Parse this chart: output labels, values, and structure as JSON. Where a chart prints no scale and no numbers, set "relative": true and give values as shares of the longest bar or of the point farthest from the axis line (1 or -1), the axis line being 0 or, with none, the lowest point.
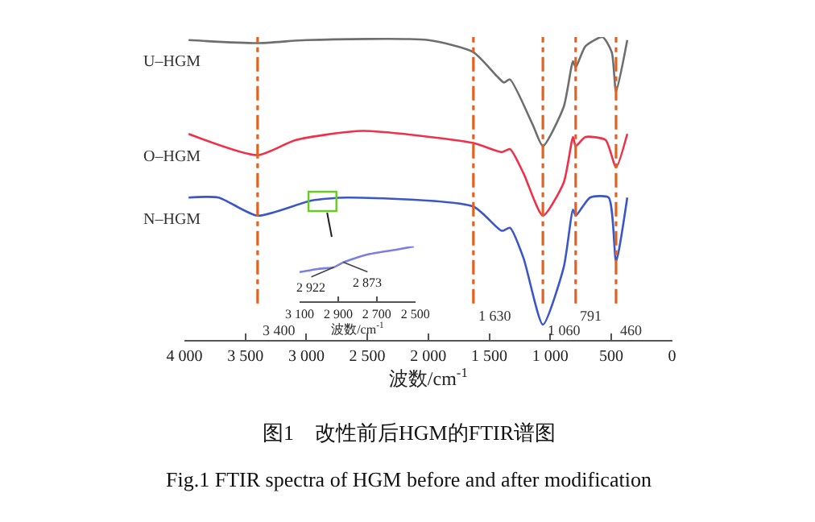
{
  "chart_data": [
    {
      "type": "line",
      "title": "图1　改性前后HGM的FTIR谱图",
      "subtitle": "Fig.1 FTIR spectra of HGM before and after modification",
      "xlabel": "波数/cm$^{-1}$",
      "relative": true,
      "marker": "none",
      "tick_labels": "x",
      "xlim": [
        4000,
        0
      ],
      "xticks": [
        {
          "value": 4000,
          "label": "4 000"
        },
        {
          "value": 3500,
          "label": "3 500"
        },
        {
          "value": 3000,
          "label": "3 000"
        },
        {
          "value": 2500,
          "label": "2 500"
        },
        {
          "value": 2000,
          "label": "2 000"
        },
        {
          "value": 1500,
          "label": "1 500"
        },
        {
          "value": 1000,
          "label": "1 000"
        },
        500,
        0
      ],
      "series": [
        {
          "name": "U–HGM",
          "color": "#6e6e6e",
          "x": [
            3966,
            3400,
            3000,
            2000,
            1630,
            1435,
            1380,
            1330,
            1143,
            1060,
            889,
            813,
            791,
            711,
            571,
            495,
            460,
            368
          ],
          "values": [
            0.99,
            0.98,
            0.99,
            0.99,
            0.95,
            0.87,
            0.85,
            0.86,
            0.71,
            0.64,
            0.77,
            0.92,
            0.9,
            0.97,
            1.0,
            0.95,
            0.82,
            0.99
          ]
        },
        {
          "name": "O–HGM",
          "color": "#f0304a",
          "x": [
            3966,
            3400,
            3086,
            2540,
            1630,
            1397,
            1330,
            1219,
            1060,
            889,
            813,
            791,
            711,
            546,
            460,
            368
          ],
          "values": [
            0.68,
            0.61,
            0.66,
            0.69,
            0.65,
            0.62,
            0.63,
            0.55,
            0.41,
            0.52,
            0.67,
            0.64,
            0.67,
            0.66,
            0.57,
            0.68
          ]
        },
        {
          "name": "N–HGM",
          "color": "#3a56c8",
          "x": [
            3966,
            3721,
            3400,
            2959,
            2667,
            1630,
            1397,
            1330,
            1219,
            1060,
            889,
            813,
            791,
            673,
            521,
            460,
            368
          ],
          "values": [
            0.47,
            0.47,
            0.41,
            0.46,
            0.47,
            0.44,
            0.36,
            0.37,
            0.27,
            0.05,
            0.24,
            0.43,
            0.41,
            0.47,
            0.47,
            0.26,
            0.47
          ]
        }
      ],
      "ref_lines": [
        {
          "axis": "x",
          "value": 3400,
          "label": "3 400",
          "color": "#e2611e",
          "line_style": "dashdot"
        },
        {
          "axis": "x",
          "value": 1630,
          "label": "1 630",
          "color": "#e2611e",
          "line_style": "dashdot"
        },
        {
          "axis": "x",
          "value": 1060,
          "label": "1 060",
          "color": "#e2611e",
          "line_style": "dashdot"
        },
        {
          "axis": "x",
          "value": 791,
          "label": "791",
          "color": "#e2611e",
          "line_style": "dashdot"
        },
        {
          "axis": "x",
          "value": 460,
          "label": "460",
          "color": "#e2611e",
          "line_style": "dashdot"
        }
      ]
    },
    {
      "type": "line",
      "xlabel": "波数/cm$^{-1}$",
      "relative": true,
      "marker": "none",
      "tick_labels": "x",
      "xlim": [
        3100,
        2500
      ],
      "xticks": [
        {
          "value": 3100,
          "label": "3 100"
        },
        {
          "value": 2900,
          "label": "2 900"
        },
        {
          "value": 2700,
          "label": "2 700"
        },
        {
          "value": 2500,
          "label": "2 500"
        }
      ],
      "series": [
        {
          "color": "#7b80e0",
          "x": [
            3100,
            3000,
            2922,
            2873,
            2750,
            2600,
            2508
          ],
          "values": [
            0.53,
            0.59,
            0.62,
            0.71,
            0.85,
            0.94,
            1.0
          ]
        }
      ],
      "annotations": [
        {
          "text": "2 922",
          "x": 2922,
          "y": 0.62
        },
        {
          "text": "2 873",
          "x": 2873,
          "y": 0.71
        }
      ]
    }
  ]
}
